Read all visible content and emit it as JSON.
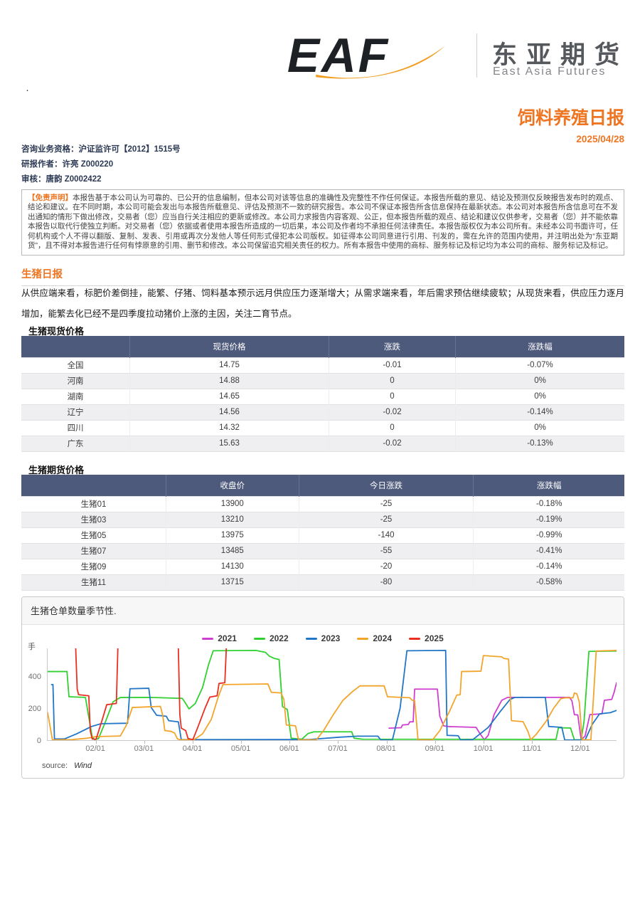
{
  "header": {
    "logo_text": "EAF",
    "company_cn": "东亚期货",
    "company_en": "East Asia Futures",
    "brand_orange": "#f5831f"
  },
  "report": {
    "title": "饲料养殖日报",
    "date": "2025/04/28",
    "qualification": "咨询业务资格：沪证监许可【2012】1515号",
    "author": "研报作者：许亮 Z000220",
    "reviewer": "审核：唐韵 Z0002422",
    "accent_color": "#ee7623"
  },
  "disclaimer": {
    "label": "【免责声明】",
    "text": "本报告基于本公司认为可靠的、已公开的信息编制，但本公司对该等信息的准确性及完整性不作任何保证。本报告所载的意见、结论及预测仅反映报告发布时的观点、结论和建议。在不同时期，本公司可能会发出与本报告所载意见、评估及预测不一致的研究报告。本公司不保证本报告所含信息保持在最新状态。本公司对本报告所含信息可在不发出通知的情形下做出修改，交易者（您）应当自行关注相应的更新或修改。本公司力求报告内容客观、公正，但本报告所载的观点、结论和建议仅供参考，交易者（您）并不能依靠本报告以取代行使独立判断。对交易者（您）依据或者使用本报告所造成的一切后果，本公司及作者均不承担任何法律责任。本报告版权仅为本公司所有。未经本公司书面许可，任何机构或个人不得以翻版、复制、发表、引用或再次分发他人等任何形式侵犯本公司版权。如征得本公司同意进行引用、刊发的，需在允许的范围内使用，并注明出处为“东亚期货”，且不得对本报告进行任何有悖原意的引用、删节和修改。本公司保留追究相关责任的权力。所有本报告中使用的商标、服务标记及标记均为本公司的商标、服务标记及标记。"
  },
  "pig_section": {
    "title": "生猪日报",
    "commentary": "从供应端来看，标肥价差倒挂，能繁、仔猪、饲料基本预示远月供应压力逐渐增大；从需求端来看，年后需求预估继续疲软；从现货来看，供应压力逐月增加，能繁去化已经不是四季度拉动猪价上涨的主因，关注二育节点。"
  },
  "spot_table": {
    "title": "生猪现货价格",
    "headers": [
      "",
      "现货价格",
      "涨跌",
      "涨跌幅"
    ],
    "col_widths": [
      "18%",
      "33%",
      "21%",
      "28%"
    ],
    "rows": [
      [
        "全国",
        "14.75",
        "-0.01",
        "-0.07%"
      ],
      [
        "河南",
        "14.88",
        "0",
        "0%"
      ],
      [
        "湖南",
        "14.65",
        "0",
        "0%"
      ],
      [
        "辽宁",
        "14.56",
        "-0.02",
        "-0.14%"
      ],
      [
        "四川",
        "14.32",
        "0",
        "0%"
      ],
      [
        "广东",
        "15.63",
        "-0.02",
        "-0.13%"
      ]
    ]
  },
  "futures_table": {
    "title": "生猪期货价格",
    "headers": [
      "",
      "收盘价",
      "今日涨跌",
      "涨跌幅"
    ],
    "col_widths": [
      "24%",
      "22%",
      "29%",
      "25%"
    ],
    "rows": [
      [
        "生猪01",
        "13900",
        "-25",
        "-0.18%"
      ],
      [
        "生猪03",
        "13210",
        "-25",
        "-0.19%"
      ],
      [
        "生猪05",
        "13975",
        "-140",
        "-0.99%"
      ],
      [
        "生猪07",
        "13485",
        "-55",
        "-0.41%"
      ],
      [
        "生猪09",
        "14130",
        "-20",
        "-0.14%"
      ],
      [
        "生猪11",
        "13715",
        "-80",
        "-0.58%"
      ]
    ]
  },
  "chart_panel": {
    "title": "生猪仓单数量季节性.",
    "y_unit": "手",
    "source_label": "source:",
    "source_value": "Wind"
  },
  "chart_data": {
    "type": "line",
    "title": "生猪仓单数量季节性",
    "ylabel": "手",
    "xlabel": "",
    "x_ticks": [
      "02/01",
      "03/01",
      "04/01",
      "05/01",
      "06/01",
      "07/01",
      "08/01",
      "09/01",
      "10/01",
      "11/01",
      "12/01"
    ],
    "x_tick_positions": [
      1,
      2,
      3,
      4,
      5,
      6,
      7,
      8,
      9,
      10,
      11
    ],
    "y_ticks": [
      0,
      200,
      400
    ],
    "xlim": [
      0,
      11.75
    ],
    "ylim": [
      0,
      575
    ],
    "grid": false,
    "legend_position": "top-center",
    "x_axis_note": "fractional month index, 0 = Jan 1, 11 = Dec 1",
    "series": [
      {
        "name": "2021",
        "color": "#cf3fcf",
        "points": [
          [
            7.05,
            75
          ],
          [
            7.3,
            78
          ],
          [
            7.33,
            95
          ],
          [
            7.45,
            98
          ],
          [
            7.48,
            115
          ],
          [
            7.55,
            115
          ],
          [
            7.58,
            320
          ],
          [
            8.05,
            320
          ],
          [
            8.1,
            150
          ],
          [
            8.18,
            90
          ],
          [
            8.3,
            85
          ],
          [
            8.85,
            80
          ],
          [
            8.92,
            45
          ],
          [
            9.02,
            2
          ],
          [
            9.1,
            30
          ],
          [
            9.22,
            160
          ],
          [
            9.38,
            250
          ],
          [
            9.5,
            268
          ],
          [
            10.78,
            268
          ],
          [
            10.83,
            245
          ],
          [
            10.88,
            160
          ],
          [
            10.95,
            158
          ],
          [
            11.02,
            2
          ],
          [
            11.1,
            25
          ],
          [
            11.2,
            160
          ],
          [
            11.45,
            165
          ],
          [
            11.5,
            250
          ],
          [
            11.65,
            255
          ],
          [
            11.7,
            300
          ],
          [
            11.75,
            360
          ]
        ]
      },
      {
        "name": "2022",
        "color": "#30d030",
        "points": [
          [
            0,
            430
          ],
          [
            0.4,
            430
          ],
          [
            0.44,
            272
          ],
          [
            0.78,
            268
          ],
          [
            0.92,
            20
          ],
          [
            0.97,
            4
          ],
          [
            1.05,
            10
          ],
          [
            1.2,
            120
          ],
          [
            1.35,
            240
          ],
          [
            1.5,
            267
          ],
          [
            2.1,
            268
          ],
          [
            2.78,
            262
          ],
          [
            2.83,
            240
          ],
          [
            2.92,
            196
          ],
          [
            3.05,
            230
          ],
          [
            3.2,
            330
          ],
          [
            3.32,
            470
          ],
          [
            3.42,
            560
          ],
          [
            4.3,
            562
          ],
          [
            4.5,
            550
          ],
          [
            4.58,
            526
          ],
          [
            4.68,
            512
          ],
          [
            4.78,
            505
          ],
          [
            4.85,
            210
          ],
          [
            4.95,
            192
          ],
          [
            5.03,
            12
          ],
          [
            5.25,
            6
          ],
          [
            5.38,
            42
          ],
          [
            5.5,
            52
          ],
          [
            6.28,
            52
          ],
          [
            6.33,
            12
          ],
          [
            6.5,
            6
          ],
          [
            10.5,
            5
          ],
          [
            10.55,
            78
          ],
          [
            10.8,
            76
          ],
          [
            10.88,
            2
          ],
          [
            11.02,
            2
          ],
          [
            11.08,
            120
          ],
          [
            11.18,
            556
          ],
          [
            11.75,
            558
          ]
        ]
      },
      {
        "name": "2023",
        "color": "#2176c7",
        "points": [
          [
            0.08,
            348
          ],
          [
            0.11,
            348
          ],
          [
            0.14,
            8
          ],
          [
            0.35,
            8
          ],
          [
            0.6,
            40
          ],
          [
            0.9,
            85
          ],
          [
            1.1,
            103
          ],
          [
            1.65,
            106
          ],
          [
            1.7,
            322
          ],
          [
            2.09,
            325
          ],
          [
            2.14,
            205
          ],
          [
            2.25,
            156
          ],
          [
            2.45,
            150
          ],
          [
            2.5,
            122
          ],
          [
            2.7,
            115
          ],
          [
            2.76,
            3
          ],
          [
            5.4,
            4
          ],
          [
            6.0,
            18
          ],
          [
            6.4,
            25
          ],
          [
            6.82,
            25
          ],
          [
            6.88,
            1
          ],
          [
            7.12,
            1
          ],
          [
            7.28,
            200
          ],
          [
            7.42,
            560
          ],
          [
            8.22,
            562
          ],
          [
            8.25,
            30
          ],
          [
            8.48,
            28
          ],
          [
            8.53,
            1
          ],
          [
            8.78,
            3
          ],
          [
            9.1,
            80
          ],
          [
            9.35,
            180
          ],
          [
            9.55,
            255
          ],
          [
            9.65,
            268
          ],
          [
            10.28,
            268
          ],
          [
            10.35,
            86
          ],
          [
            10.62,
            80
          ],
          [
            10.68,
            1
          ],
          [
            11.1,
            1
          ],
          [
            11.25,
            100
          ],
          [
            11.4,
            165
          ],
          [
            11.62,
            172
          ],
          [
            11.75,
            186
          ]
        ]
      },
      {
        "name": "2024",
        "color": "#f2a42b",
        "points": [
          [
            0,
            172
          ],
          [
            0.1,
            2
          ],
          [
            0.5,
            3
          ],
          [
            0.8,
            12
          ],
          [
            1.0,
            22
          ],
          [
            1.5,
            26
          ],
          [
            1.62,
            90
          ],
          [
            1.75,
            205
          ],
          [
            2.33,
            212
          ],
          [
            2.38,
            150
          ],
          [
            2.42,
            60
          ],
          [
            2.55,
            55
          ],
          [
            2.62,
            45
          ],
          [
            2.68,
            8
          ],
          [
            2.75,
            2
          ],
          [
            3.02,
            2
          ],
          [
            3.2,
            40
          ],
          [
            3.38,
            130
          ],
          [
            3.52,
            268
          ],
          [
            3.62,
            348
          ],
          [
            4.55,
            352
          ],
          [
            4.62,
            300
          ],
          [
            4.82,
            296
          ],
          [
            4.88,
            255
          ],
          [
            4.93,
            95
          ],
          [
            5.12,
            90
          ],
          [
            5.18,
            2
          ],
          [
            5.55,
            2
          ],
          [
            5.7,
            60
          ],
          [
            5.9,
            160
          ],
          [
            6.1,
            250
          ],
          [
            6.3,
            305
          ],
          [
            6.45,
            340
          ],
          [
            6.95,
            340
          ],
          [
            7.02,
            272
          ],
          [
            7.48,
            266
          ],
          [
            7.53,
            250
          ],
          [
            7.58,
            248
          ],
          [
            7.65,
            2
          ],
          [
            7.95,
            2
          ],
          [
            8.1,
            60
          ],
          [
            8.3,
            180
          ],
          [
            8.45,
            282
          ],
          [
            8.52,
            285
          ],
          [
            8.55,
            430
          ],
          [
            8.95,
            432
          ],
          [
            9.0,
            530
          ],
          [
            9.38,
            522
          ],
          [
            9.42,
            512
          ],
          [
            9.52,
            508
          ],
          [
            9.58,
            122
          ],
          [
            9.82,
            116
          ],
          [
            9.92,
            55
          ],
          [
            9.98,
            2
          ],
          [
            10.1,
            40
          ],
          [
            10.3,
            120
          ],
          [
            10.45,
            200
          ],
          [
            10.6,
            260
          ],
          [
            10.7,
            266
          ],
          [
            10.85,
            265
          ],
          [
            10.88,
            296
          ],
          [
            10.93,
            290
          ],
          [
            10.98,
            240
          ],
          [
            11.04,
            2
          ],
          [
            11.22,
            2
          ],
          [
            11.28,
            300
          ],
          [
            11.33,
            558
          ],
          [
            11.75,
            562
          ]
        ]
      },
      {
        "name": "2025",
        "color": "#ea2e20",
        "points": [
          [
            0.58,
            575
          ],
          [
            0.61,
            320
          ],
          [
            0.64,
            285
          ],
          [
            0.85,
            278
          ],
          [
            0.88,
            60
          ],
          [
            0.92,
            8
          ],
          [
            1.0,
            5
          ],
          [
            1.12,
            120
          ],
          [
            1.22,
            222
          ],
          [
            1.42,
            230
          ],
          [
            1.45,
            575
          ],
          null,
          [
            2.7,
            575
          ],
          [
            2.73,
            160
          ],
          [
            2.76,
            75
          ],
          [
            2.85,
            60
          ],
          [
            2.9,
            10
          ],
          [
            3.0,
            4
          ],
          [
            3.1,
            80
          ],
          [
            3.25,
            200
          ],
          [
            3.35,
            270
          ],
          [
            3.5,
            278
          ],
          [
            3.54,
            355
          ],
          [
            3.66,
            360
          ],
          [
            3.69,
            575
          ]
        ]
      }
    ]
  }
}
